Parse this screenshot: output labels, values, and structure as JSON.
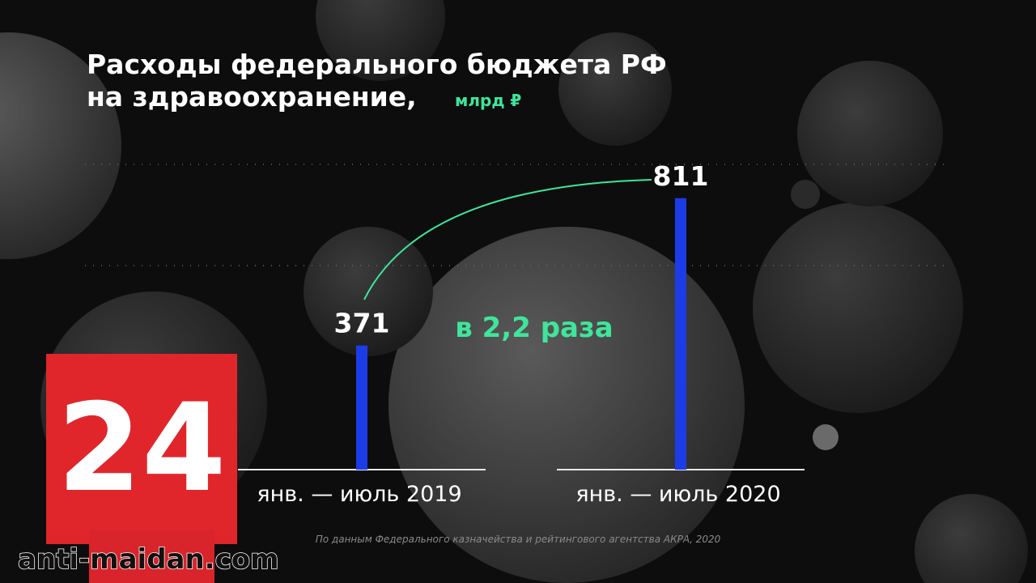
{
  "chart_data": {
    "type": "bar",
    "title": [
      "Расходы федерального бюджета РФ",
      "на здравоохранение,"
    ],
    "unit": "млрд ₽",
    "categories": [
      "янв. — июль 2019",
      "янв. — июль 2020"
    ],
    "values": [
      371,
      811
    ],
    "color": "#1c3ce8",
    "ylim": [
      0,
      900
    ],
    "annotation": "в 2,2 раза",
    "source": "По данным Федерального казначейства и рейтингового агентства АКРА, 2020"
  },
  "logo": {
    "text": "24"
  },
  "watermark": {
    "text": "anti-maidan.com"
  }
}
